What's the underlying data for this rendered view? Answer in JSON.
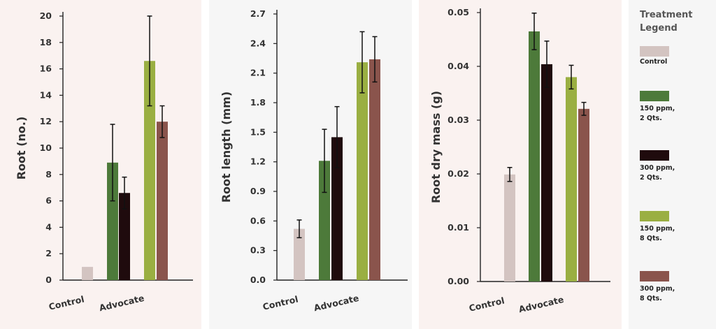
{
  "chart_data": [
    {
      "type": "bar",
      "ylabel": "Root (no.)",
      "group_labels": [
        "Control",
        "Advocate"
      ],
      "ylim": [
        0,
        20
      ],
      "yticks": [
        "0",
        "2",
        "4",
        "6",
        "8",
        "10",
        "12",
        "14",
        "16",
        "18",
        "20"
      ],
      "bars": [
        {
          "series": "Control",
          "value": 1.0,
          "err": null
        },
        {
          "series": "150 ppm, 2 Qts.",
          "value": 8.9,
          "err": 2.9
        },
        {
          "series": "300 ppm, 2 Qts.",
          "value": 6.6,
          "err": 1.2
        },
        {
          "series": "150 ppm, 8 Qts.",
          "value": 16.6,
          "err": 3.4
        },
        {
          "series": "300 ppm, 8 Qts.",
          "value": 12.0,
          "err": 1.2
        }
      ]
    },
    {
      "type": "bar",
      "ylabel": "Root length (mm)",
      "group_labels": [
        "Control",
        "Advocate"
      ],
      "ylim": [
        0,
        2.7
      ],
      "yticks": [
        "0.0",
        "0.3",
        "0.6",
        "0.9",
        "1.2",
        "1.5",
        "1.8",
        "2.1",
        "2.4",
        "2.7"
      ],
      "bars": [
        {
          "series": "Control",
          "value": 0.52,
          "err": 0.09
        },
        {
          "series": "150 ppm, 2 Qts.",
          "value": 1.21,
          "err": 0.32
        },
        {
          "series": "300 ppm, 2 Qts.",
          "value": 1.45,
          "err": 0.31
        },
        {
          "series": "150 ppm, 8 Qts.",
          "value": 2.21,
          "err": 0.31
        },
        {
          "series": "300 ppm, 8 Qts.",
          "value": 2.24,
          "err": 0.23
        }
      ]
    },
    {
      "type": "bar",
      "ylabel": "Root dry mass (g)",
      "group_labels": [
        "Control",
        "Advocate"
      ],
      "ylim": [
        0,
        0.05
      ],
      "yticks": [
        "0.00",
        "0.01",
        "0.02",
        "0.03",
        "0.04",
        "0.05"
      ],
      "bars": [
        {
          "series": "Control",
          "value": 0.0199,
          "err": 0.0013
        },
        {
          "series": "150 ppm, 2 Qts.",
          "value": 0.0465,
          "err": 0.0034
        },
        {
          "series": "300 ppm, 2 Qts.",
          "value": 0.0404,
          "err": 0.0043
        },
        {
          "series": "150 ppm, 8 Qts.",
          "value": 0.038,
          "err": 0.0022
        },
        {
          "series": "300 ppm, 8 Qts.",
          "value": 0.0321,
          "err": 0.0012
        }
      ]
    }
  ],
  "legend": {
    "title": "Treatment Legend",
    "items": [
      {
        "label": "Control",
        "color": "#d3c4c1"
      },
      {
        "label": "150 ppm, 2 Qts.",
        "color": "#4d7a3a"
      },
      {
        "label": "300 ppm, 2 Qts.",
        "color": "#1f0b0d"
      },
      {
        "label": "150 ppm, 8 Qts.",
        "color": "#9aaf42"
      },
      {
        "label": "300 ppm, 8 Qts.",
        "color": "#8a544c"
      }
    ]
  }
}
